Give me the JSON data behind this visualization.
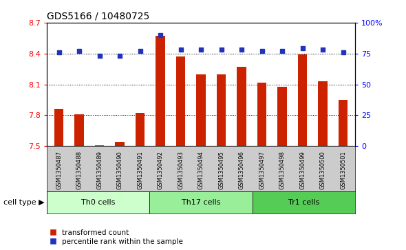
{
  "title": "GDS5166 / 10480725",
  "samples": [
    "GSM1350487",
    "GSM1350488",
    "GSM1350489",
    "GSM1350490",
    "GSM1350491",
    "GSM1350492",
    "GSM1350493",
    "GSM1350494",
    "GSM1350495",
    "GSM1350496",
    "GSM1350497",
    "GSM1350498",
    "GSM1350499",
    "GSM1350500",
    "GSM1350501"
  ],
  "bar_values": [
    7.86,
    7.81,
    7.51,
    7.54,
    7.82,
    8.57,
    8.37,
    8.2,
    8.2,
    8.27,
    8.12,
    8.08,
    8.39,
    8.13,
    7.95
  ],
  "percentile_values": [
    76,
    77,
    73,
    73,
    77,
    90,
    78,
    78,
    78,
    78,
    77,
    77,
    79,
    78,
    76
  ],
  "bar_color": "#cc2200",
  "dot_color": "#2233bb",
  "ylim_left": [
    7.5,
    8.7
  ],
  "ylim_right": [
    0,
    100
  ],
  "yticks_left": [
    7.5,
    7.8,
    8.1,
    8.4,
    8.7
  ],
  "yticks_right": [
    0,
    25,
    50,
    75,
    100
  ],
  "ytick_labels_right": [
    "0",
    "25",
    "50",
    "75",
    "100%"
  ],
  "dotted_lines": [
    7.8,
    8.1,
    8.4
  ],
  "groups": [
    {
      "label": "Th0 cells",
      "start": 0,
      "end": 5,
      "color": "#ccffcc"
    },
    {
      "label": "Th17 cells",
      "start": 5,
      "end": 10,
      "color": "#99ee99"
    },
    {
      "label": "Tr1 cells",
      "start": 10,
      "end": 15,
      "color": "#55cc55"
    }
  ],
  "cell_type_label": "cell type",
  "legend_bar_label": "transformed count",
  "legend_dot_label": "percentile rank within the sample",
  "bar_width": 0.45,
  "background_color": "#ffffff",
  "plot_bg_color": "#ffffff",
  "sample_bg_color": "#cccccc",
  "title_fontsize": 10,
  "axis_fontsize": 8,
  "label_fontsize": 7.5
}
